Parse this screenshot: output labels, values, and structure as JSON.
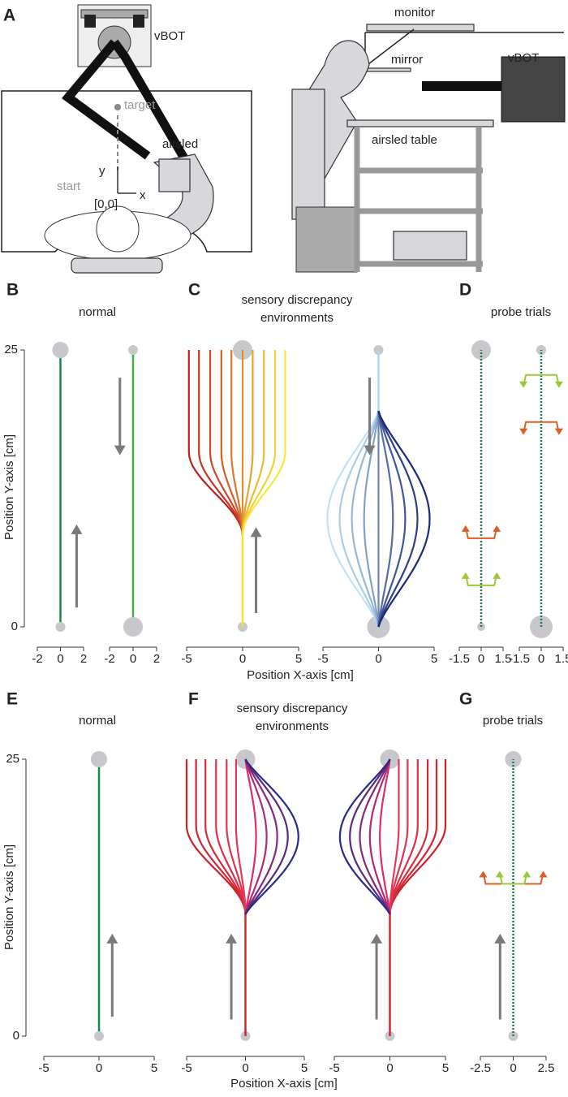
{
  "panel_a": {
    "label": "A",
    "left_labels": {
      "vbot": "vBOT",
      "target": "target",
      "airsled": "airsled",
      "y": "y",
      "start": "start",
      "x": "x",
      "origin": "[0,0]"
    },
    "right_labels": {
      "monitor": "monitor",
      "mirror": "mirror",
      "vbot": "vBOT",
      "table": "airsled table"
    }
  },
  "row1": {
    "y_label": "Position Y-axis [cm]",
    "x_label": "Position X-axis [cm]",
    "ylim": [
      0,
      25
    ],
    "yticks": [
      0,
      25
    ],
    "panels": [
      {
        "label": "B",
        "title": [
          "normal"
        ],
        "axes": [
          {
            "xlim": [
              -2,
              2
            ],
            "xticks": [
              -2,
              0,
              2
            ]
          },
          {
            "xlim": [
              -2,
              2
            ],
            "xticks": [
              -2,
              0,
              2
            ]
          }
        ]
      },
      {
        "label": "C",
        "title": [
          "sensory discrepancy",
          "environments"
        ],
        "axes": [
          {
            "xlim": [
              -5,
              5
            ],
            "xticks": [
              -5,
              0,
              5
            ]
          },
          {
            "xlim": [
              -5,
              5
            ],
            "xticks": [
              -5,
              0,
              5
            ]
          }
        ]
      },
      {
        "label": "D",
        "title": [
          "probe trials"
        ],
        "axes": [
          {
            "xlim": [
              -1.5,
              1.5
            ],
            "xticks": [
              -1.5,
              0,
              1.5
            ]
          },
          {
            "xlim": [
              -1.5,
              1.5
            ],
            "xticks": [
              -1.5,
              0,
              1.5
            ]
          }
        ]
      }
    ]
  },
  "row2": {
    "y_label": "Position Y-axis [cm]",
    "x_label": "Position X-axis [cm]",
    "ylim": [
      0,
      25
    ],
    "yticks": [
      0,
      25
    ],
    "panels": [
      {
        "label": "E",
        "title": [
          "normal"
        ],
        "axes": [
          {
            "xlim": [
              -5,
              5
            ],
            "xticks": [
              -5,
              0,
              5
            ]
          }
        ]
      },
      {
        "label": "F",
        "title": [
          "sensory discrepancy",
          "environments"
        ],
        "axes": [
          {
            "xlim": [
              -5,
              5
            ],
            "xticks": [
              -5,
              0,
              5
            ]
          },
          {
            "xlim": [
              -5,
              5
            ],
            "xticks": [
              -5,
              0,
              5
            ]
          }
        ]
      },
      {
        "label": "G",
        "title": [
          "probe trials"
        ],
        "axes": [
          {
            "xlim": [
              -2.5,
              2.5
            ],
            "xticks": [
              -2.5,
              0,
              2.5
            ]
          }
        ]
      }
    ]
  }
}
